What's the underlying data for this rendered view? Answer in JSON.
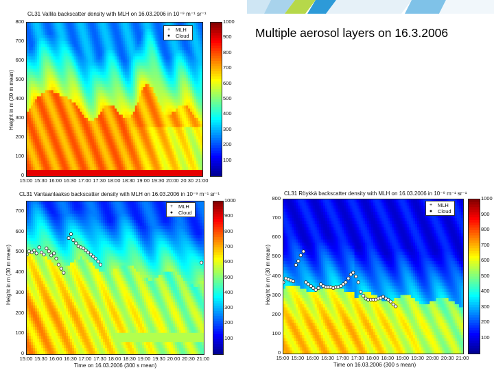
{
  "slide": {
    "title": "Multiple aerosol layers on 16.3.2006"
  },
  "colors": {
    "jet": [
      "#00008f",
      "#0000ff",
      "#0080ff",
      "#00ffff",
      "#80ff80",
      "#ffff00",
      "#ff8000",
      "#ff0000",
      "#800000"
    ]
  },
  "chart_data": [
    {
      "type": "heatmap",
      "title": "CL31 Vallila backscatter density with MLH on 16.03.2006 in 10⁻⁹ m⁻¹ sr⁻¹",
      "xlabel": "",
      "ylabel": "Height in m (30 m mean)",
      "x_ticks": [
        "15:00",
        "15:30",
        "16:00",
        "16:30",
        "17:00",
        "17:30",
        "18:00",
        "18:30",
        "19:00",
        "19:30",
        "20:00",
        "20:30",
        "21:00"
      ],
      "y_ticks": [
        "0",
        "100",
        "200",
        "300",
        "400",
        "500",
        "600",
        "700",
        "800"
      ],
      "ylim": [
        0,
        800
      ],
      "colorbar_ticks": [
        "100",
        "200",
        "300",
        "400",
        "500",
        "600",
        "700",
        "800",
        "900",
        "1000"
      ],
      "colorbar_range": [
        0,
        1000
      ],
      "legend": [
        "MLH",
        "Cloud"
      ],
      "legend_position": "top-right",
      "mlh_points": []
    },
    {
      "type": "heatmap",
      "title": "CL31 Vantaanlaakso backscatter density with MLH on 16.03.2006 in 10⁻⁹ m⁻¹ sr⁻¹",
      "xlabel": "Time on 16.03.2006 (300 s mean)",
      "ylabel": "Height in m (30 m mean)",
      "x_ticks": [
        "15:00",
        "15:30",
        "16:00",
        "16:30",
        "17:00",
        "17:30",
        "18:00",
        "18:30",
        "19:00",
        "19:30",
        "20:00",
        "20:30",
        "21:00"
      ],
      "y_ticks": [
        "0",
        "100",
        "200",
        "300",
        "400",
        "500",
        "600",
        "700"
      ],
      "ylim": [
        0,
        750
      ],
      "colorbar_ticks": [
        "100",
        "200",
        "300",
        "400",
        "500",
        "600",
        "700",
        "800",
        "900",
        "1000"
      ],
      "colorbar_range": [
        0,
        1000
      ],
      "legend": [
        "MLH",
        "Cloud"
      ],
      "legend_position": "top-right",
      "mlh_points": [
        [
          0.0,
          490
        ],
        [
          0.08,
          505
        ],
        [
          0.17,
          500
        ],
        [
          0.25,
          510
        ],
        [
          0.33,
          495
        ],
        [
          0.42,
          525
        ],
        [
          0.5,
          500
        ],
        [
          0.58,
          490
        ],
        [
          0.67,
          520
        ],
        [
          0.75,
          505
        ],
        [
          0.83,
          485
        ],
        [
          0.92,
          495
        ],
        [
          1.0,
          470
        ],
        [
          1.08,
          440
        ],
        [
          1.17,
          420
        ],
        [
          1.25,
          400
        ],
        [
          1.42,
          570
        ],
        [
          1.5,
          590
        ],
        [
          1.58,
          560
        ],
        [
          1.67,
          545
        ],
        [
          1.75,
          530
        ],
        [
          1.83,
          525
        ],
        [
          1.92,
          520
        ],
        [
          2.0,
          510
        ],
        [
          2.08,
          500
        ],
        [
          2.17,
          490
        ],
        [
          2.25,
          480
        ],
        [
          2.33,
          470
        ],
        [
          2.42,
          455
        ],
        [
          2.5,
          440
        ],
        [
          5.92,
          450
        ]
      ]
    },
    {
      "type": "heatmap",
      "title": "CL31 Röykkä backscatter density with MLH on 16.03.2006 in 10⁻⁹ m⁻¹ sr⁻¹",
      "xlabel": "Time on 16.03.2006 (300 s mean)",
      "ylabel": "Height in m (30 m mean)",
      "x_ticks": [
        "15:00",
        "15:30",
        "16:00",
        "16:30",
        "17:00",
        "17:30",
        "18:00",
        "18:30",
        "19:00",
        "19:30",
        "20:00",
        "20:30",
        "21:00"
      ],
      "y_ticks": [
        "0",
        "100",
        "200",
        "300",
        "400",
        "500",
        "600",
        "700",
        "800"
      ],
      "ylim": [
        0,
        800
      ],
      "colorbar_ticks": [
        "100",
        "200",
        "300",
        "400",
        "500",
        "600",
        "700",
        "800",
        "900",
        "1000"
      ],
      "colorbar_range": [
        0,
        1000
      ],
      "legend": [
        "MLH",
        "Cloud"
      ],
      "legend_position": "top-right",
      "mlh_points": [
        [
          0.0,
          370
        ],
        [
          0.08,
          390
        ],
        [
          0.17,
          385
        ],
        [
          0.25,
          380
        ],
        [
          0.33,
          375
        ],
        [
          0.42,
          460
        ],
        [
          0.5,
          480
        ],
        [
          0.58,
          510
        ],
        [
          0.67,
          530
        ],
        [
          0.75,
          370
        ],
        [
          0.83,
          360
        ],
        [
          0.92,
          350
        ],
        [
          1.0,
          340
        ],
        [
          1.08,
          330
        ],
        [
          1.17,
          340
        ],
        [
          1.25,
          360
        ],
        [
          1.33,
          350
        ],
        [
          1.42,
          345
        ],
        [
          1.5,
          345
        ],
        [
          1.58,
          345
        ],
        [
          1.67,
          340
        ],
        [
          1.75,
          345
        ],
        [
          1.83,
          345
        ],
        [
          1.92,
          350
        ],
        [
          2.0,
          360
        ],
        [
          2.08,
          370
        ],
        [
          2.17,
          390
        ],
        [
          2.25,
          410
        ],
        [
          2.33,
          420
        ],
        [
          2.42,
          400
        ],
        [
          2.5,
          370
        ],
        [
          2.58,
          320
        ],
        [
          2.67,
          300
        ],
        [
          2.75,
          285
        ],
        [
          2.83,
          280
        ],
        [
          2.92,
          280
        ],
        [
          3.0,
          280
        ],
        [
          3.08,
          280
        ],
        [
          3.17,
          285
        ],
        [
          3.25,
          290
        ],
        [
          3.33,
          295
        ],
        [
          3.42,
          285
        ],
        [
          3.5,
          280
        ],
        [
          3.58,
          270
        ],
        [
          3.67,
          255
        ],
        [
          3.75,
          245
        ]
      ]
    }
  ]
}
